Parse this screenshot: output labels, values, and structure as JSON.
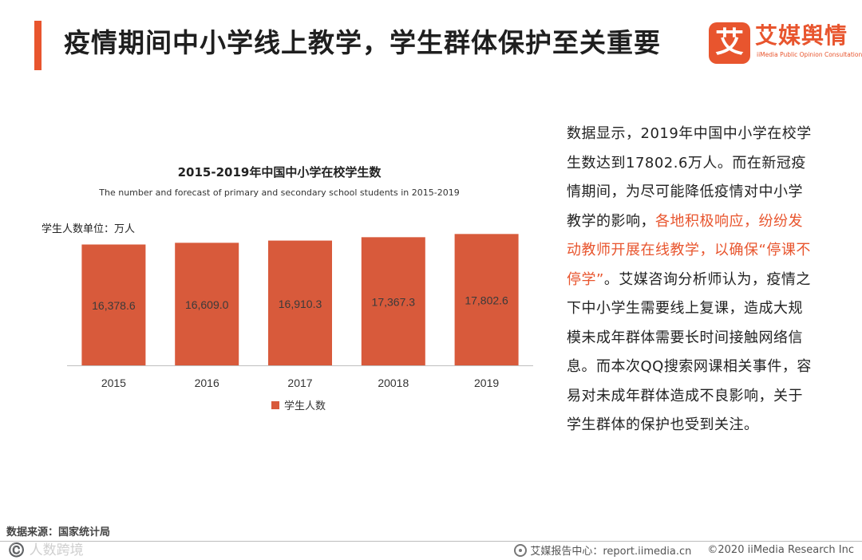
{
  "header": {
    "title": "疫情期间中小学线上教学，学生群体保护至关重要",
    "accent_color": "#e8552e"
  },
  "logo": {
    "mark": "艾",
    "name_cn": "艾媒舆情",
    "name_en": "iiMedia Public Opinion Consultation"
  },
  "chart": {
    "unit_label": "学生人数单位：万人"
  },
  "chart_data": {
    "type": "bar",
    "title": "2015-2019年中国中小学在校学生数",
    "subtitle": "The number and forecast of primary and secondary school students in 2015-2019",
    "categories": [
      "2015",
      "2016",
      "2017",
      "20018",
      "2019"
    ],
    "series": [
      {
        "name": "学生人数",
        "values": [
          16378.6,
          16609.0,
          16910.3,
          17367.3,
          17802.6
        ],
        "labels": [
          "16,378.6",
          "16,609.0",
          "16,910.3",
          "17,367.3",
          "17,802.6"
        ]
      }
    ],
    "xlabel": "",
    "ylabel": "",
    "ylim": [
      0,
      20000
    ],
    "legend": "bottom-center",
    "bar_color": "#d85a3b"
  },
  "article": {
    "part1": "数据显示，2019年中国中小学在校学生数达到17802.6万人。而在新冠疫情期间，为尽可能降低疫情对中小学教学的影响，",
    "highlight": "各地积极响应，纷纷发动教师开展在线教学，以确保“停课不停学”",
    "part2": "。艾媒咨询分析师认为，疫情之下中小学生需要线上复课，造成大规模未成年群体需要长时间接触网络信息。而本次QQ搜索网课相关事件，容易对未成年群体造成不良影响，关于学生群体的保护也受到关注。"
  },
  "footer": {
    "source": "数据来源：国家统计局",
    "watermark": "©️ 人数跨境",
    "center": "艾媒报告中心：report.iimedia.cn",
    "copyright": "©2020  iiMedia Research  Inc"
  }
}
